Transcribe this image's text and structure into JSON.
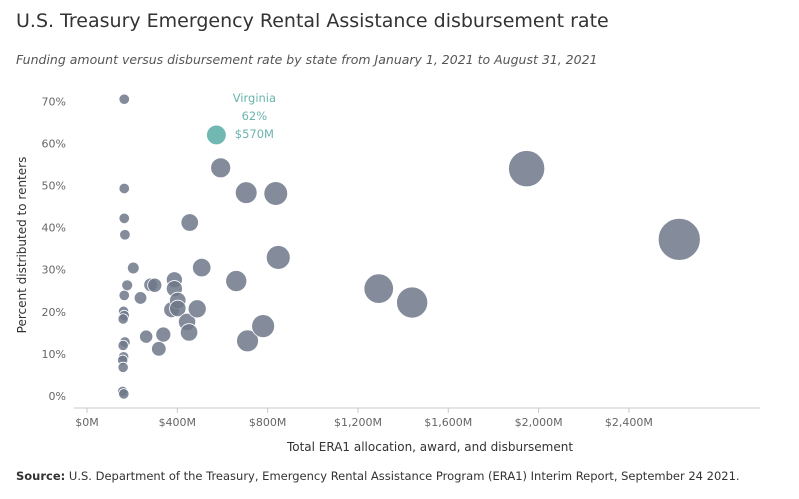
{
  "chart_data": {
    "type": "scatter",
    "title": "U.S. Treasury Emergency Rental Assistance disbursement rate",
    "subtitle": "Funding amount versus disbursement rate by state from January 1, 2021 to August 31, 2021",
    "xlabel": "Total ERA1 allocation, award, and disbursement",
    "ylabel": "Percent distributed to renters",
    "xlim": [
      0,
      2800
    ],
    "ylim": [
      0,
      72
    ],
    "x_ticks": [
      0,
      400,
      800,
      1200,
      1600,
      2000,
      2400
    ],
    "x_tick_labels": [
      "$0M",
      "$400M",
      "$800M",
      "$1,200M",
      "$1,600M",
      "$2,000M",
      "$2,400M"
    ],
    "y_ticks": [
      0,
      10,
      20,
      30,
      40,
      50,
      60,
      70
    ],
    "y_tick_labels": [
      "0%",
      "10%",
      "20%",
      "30%",
      "40%",
      "50%",
      "60%",
      "70%"
    ],
    "grid": false,
    "point_color": "#6e7889",
    "highlight_color": "#6ab4ae",
    "points": [
      {
        "x": 165,
        "y": 70.5
      },
      {
        "x": 165,
        "y": 49.3
      },
      {
        "x": 165,
        "y": 42.2
      },
      {
        "x": 168,
        "y": 38.3
      },
      {
        "x": 165,
        "y": 23.9
      },
      {
        "x": 178,
        "y": 26.3
      },
      {
        "x": 162,
        "y": 20.1
      },
      {
        "x": 165,
        "y": 19.1
      },
      {
        "x": 160,
        "y": 18.3
      },
      {
        "x": 168,
        "y": 12.8
      },
      {
        "x": 160,
        "y": 12.0
      },
      {
        "x": 162,
        "y": 9.3
      },
      {
        "x": 158,
        "y": 8.5
      },
      {
        "x": 160,
        "y": 6.8
      },
      {
        "x": 158,
        "y": 1.1
      },
      {
        "x": 163,
        "y": 0.5
      },
      {
        "x": 205,
        "y": 30.4
      },
      {
        "x": 237,
        "y": 23.3
      },
      {
        "x": 282,
        "y": 26.4
      },
      {
        "x": 300,
        "y": 26.3
      },
      {
        "x": 262,
        "y": 14.1
      },
      {
        "x": 318,
        "y": 11.2
      },
      {
        "x": 338,
        "y": 14.6
      },
      {
        "x": 375,
        "y": 20.5
      },
      {
        "x": 387,
        "y": 27.6
      },
      {
        "x": 387,
        "y": 25.5
      },
      {
        "x": 402,
        "y": 22.7
      },
      {
        "x": 402,
        "y": 20.8
      },
      {
        "x": 443,
        "y": 17.6
      },
      {
        "x": 452,
        "y": 15.1
      },
      {
        "x": 455,
        "y": 41.2
      },
      {
        "x": 488,
        "y": 20.7
      },
      {
        "x": 508,
        "y": 30.5
      },
      {
        "x": 573,
        "y": 62.0,
        "highlight": true,
        "label": [
          "Virginia",
          "62%",
          "$570M"
        ]
      },
      {
        "x": 592,
        "y": 54.2
      },
      {
        "x": 661,
        "y": 27.3
      },
      {
        "x": 705,
        "y": 48.3
      },
      {
        "x": 711,
        "y": 13.1
      },
      {
        "x": 780,
        "y": 16.6
      },
      {
        "x": 836,
        "y": 48.1
      },
      {
        "x": 847,
        "y": 32.9
      },
      {
        "x": 1292,
        "y": 25.5
      },
      {
        "x": 1440,
        "y": 22.2
      },
      {
        "x": 1947,
        "y": 54.0
      },
      {
        "x": 2623,
        "y": 37.2
      }
    ]
  },
  "footer": {
    "label": "Source:",
    "text": " U.S. Department of the Treasury, Emergency Rental Assistance Program (ERA1) Interim Report, September 24 2021."
  }
}
